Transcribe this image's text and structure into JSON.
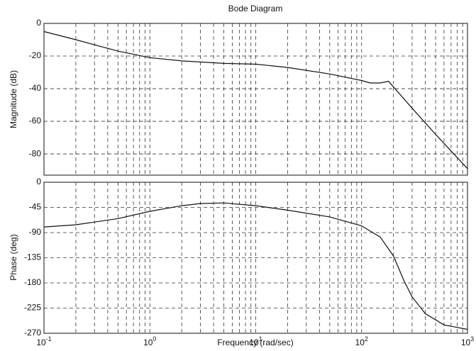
{
  "chart_data": [
    {
      "type": "line",
      "title": "Bode Diagram",
      "ylabel": "Magnitude (dB)",
      "log_x": true,
      "grid": true,
      "minor_grid": true,
      "color": "#111111",
      "x": [
        0.1,
        0.2,
        0.5,
        1,
        2,
        5,
        10,
        20,
        50,
        100,
        120,
        150,
        180,
        300,
        500,
        1000
      ],
      "values": [
        -5,
        -10,
        -17,
        -21,
        -23,
        -24.5,
        -25,
        -27,
        -31,
        -35,
        -36.5,
        -36.5,
        -35.5,
        -52,
        -68,
        -89
      ],
      "xlim": [
        0.1,
        1000
      ],
      "xticks": [
        0.1,
        1,
        10,
        100,
        1000
      ],
      "ylim": [
        -93,
        0
      ],
      "yticks": [
        0,
        -20,
        -40,
        -60,
        -80
      ]
    },
    {
      "type": "line",
      "xlabel": "Frequency  (rad/sec)",
      "ylabel": "Phase (deg)",
      "log_x": true,
      "grid": true,
      "minor_grid": true,
      "color": "#111111",
      "x": [
        0.1,
        0.2,
        0.5,
        1,
        2,
        3,
        5,
        10,
        20,
        50,
        100,
        150,
        200,
        250,
        300,
        400,
        600,
        1000
      ],
      "values": [
        -80,
        -76,
        -65,
        -52,
        -42,
        -38,
        -37,
        -42,
        -50,
        -62,
        -78,
        -98,
        -132,
        -175,
        -205,
        -235,
        -255,
        -263
      ],
      "xlim": [
        0.1,
        1000
      ],
      "xticks": [
        {
          "value": 0.1,
          "label": "10",
          "power": "-1"
        },
        {
          "value": 1,
          "label": "10",
          "power": "0"
        },
        {
          "value": 10,
          "label": "10",
          "power": "1"
        },
        {
          "value": 100,
          "label": "10",
          "power": "2"
        },
        {
          "value": 1000,
          "label": "10",
          "power": "3"
        }
      ],
      "ylim": [
        -270,
        0
      ],
      "yticks": [
        0,
        -45,
        -90,
        -135,
        -180,
        -225,
        -270
      ]
    }
  ]
}
